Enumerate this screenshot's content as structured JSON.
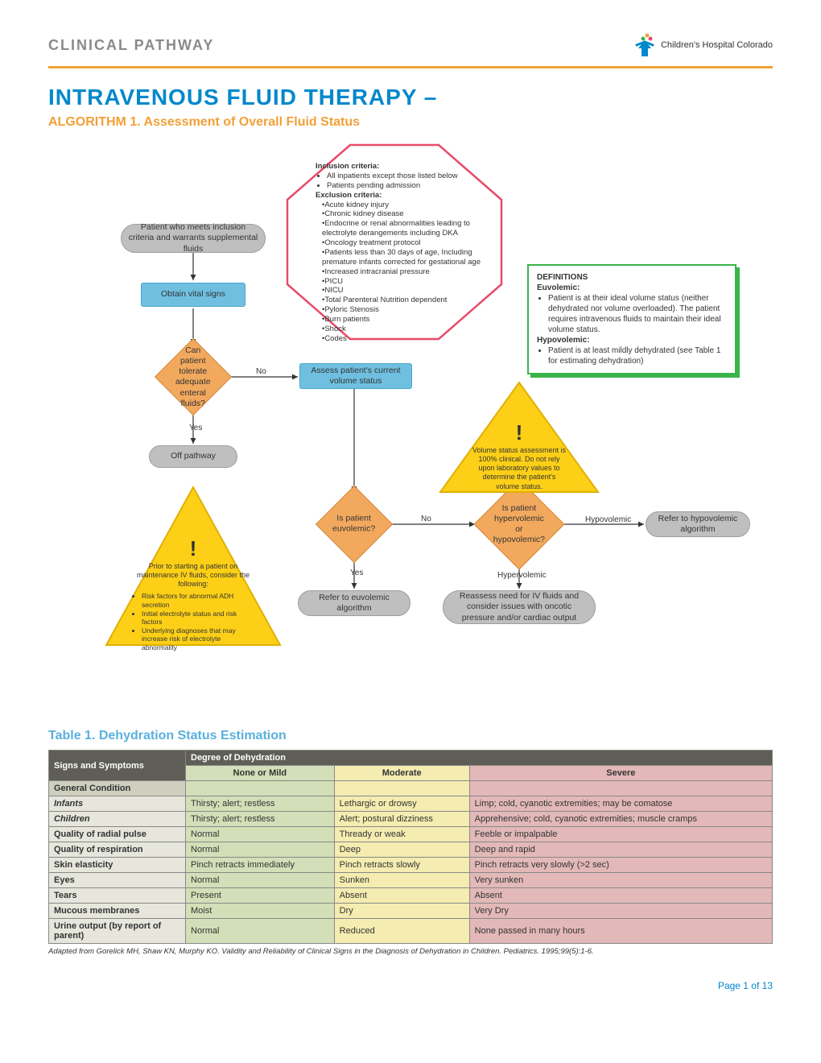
{
  "header": {
    "kicker": "CLINICAL PATHWAY",
    "logo_text": "Children's Hospital Colorado"
  },
  "title": "INTRAVENOUS FLUID THERAPY –",
  "subtitle": "ALGORITHM 1. Assessment of Overall Fluid Status",
  "colors": {
    "accent_blue": "#0088cc",
    "accent_orange": "#f2a037",
    "node_gray": "#bfbfbf",
    "node_blue": "#6fc0e0",
    "diamond_orange": "#f2a95e",
    "warn_yellow": "#fdd017",
    "warn_border": "#e0b000",
    "criteria_border": "#e94b6a",
    "defs_border": "#3bb44a",
    "table_header_dark": "#5e5e56",
    "mild_bg": "#d3dfb8",
    "mod_bg": "#f4ecb0",
    "sev_bg": "#e2b9b8",
    "rowhead_bg": "#cfcfbf",
    "rowlabel_bg": "#e6e6dc"
  },
  "nodes": {
    "n1": "Patient who meets inclusion criteria and warrants supplemental fluids",
    "n2": "Obtain vital signs",
    "n3": "Can patient tolerate adequate enteral fluids?",
    "n3_yes": "Yes",
    "n3_no": "No",
    "n4": "Off pathway",
    "n5": "Assess patient's current volume status",
    "n6": "Is patient euvolemic?",
    "n6_yes": "Yes",
    "n6_no": "No",
    "n7": "Refer to euvolemic algorithm",
    "n8": "Is patient hypervolemic or hypovolemic?",
    "n8_hyper": "Hypervolemic",
    "n8_hypo": "Hypovolemic",
    "n9": "Reassess need for IV fluids and consider issues with oncotic pressure and/or cardiac output",
    "n10": "Refer to hypovolemic algorithm"
  },
  "criteria": {
    "incl_title": "Inclusion criteria:",
    "incl": [
      "All inpatients except those listed below",
      "Patients pending admission"
    ],
    "excl_title": "Exclusion criteria:",
    "excl": [
      "Acute kidney injury",
      "Chronic kidney disease",
      "Endocrine or renal abnormalities leading to electrolyte derangements including DKA",
      "Oncology treatment protocol",
      "Patients less than 30 days of age, Including premature infants corrected for gestational age",
      "Increased intracranial pressure",
      "PICU",
      "NICU",
      "Total Parenteral Nutrition dependent",
      "Pyloric Stenosis",
      "Burn patients",
      "Shock",
      "Codes"
    ]
  },
  "definitions": {
    "title": "DEFINITIONS",
    "euv_title": "Euvolemic:",
    "euv_text": "Patient is at their ideal volume status (neither dehydrated nor volume overloaded). The patient requires intravenous fluids to maintain their ideal volume status.",
    "hypo_title": "Hypovolemic:",
    "hypo_text": "Patient is at least mildly dehydrated (see Table 1 for estimating dehydration)"
  },
  "warn_right": "Volume status assessment is 100% clinical. Do not rely upon laboratory values to determine the patient's volume status.",
  "warn_left_lead": "Prior to starting a patient on maintenance IV fluids, consider the following:",
  "warn_left_items": [
    "Risk factors for abnormal ADH secretion",
    "Initial electrolyte status and risk factors",
    "Underlying diagnoses that may increase risk of electrolyte abnormality"
  ],
  "table": {
    "title": "Table 1. Dehydration Status Estimation",
    "col1": "Signs and Symptoms",
    "spanhdr": "Degree of Dehydration",
    "degcols": [
      "None or Mild",
      "Moderate",
      "Severe"
    ],
    "rows": [
      {
        "type": "head",
        "label": "General Condition",
        "mild": "",
        "mod": "",
        "sev": ""
      },
      {
        "type": "sub",
        "label": "Infants",
        "mild": "Thirsty; alert; restless",
        "mod": "Lethargic or drowsy",
        "sev": "Limp; cold, cyanotic extremities; may be comatose"
      },
      {
        "type": "sub",
        "label": "Children",
        "mild": "Thirsty; alert; restless",
        "mod": "Alert; postural dizziness",
        "sev": "Apprehensive; cold, cyanotic extremities; muscle cramps"
      },
      {
        "type": "label",
        "label": "Quality of radial pulse",
        "mild": "Normal",
        "mod": "Thready or weak",
        "sev": "Feeble or impalpable"
      },
      {
        "type": "label",
        "label": "Quality of respiration",
        "mild": "Normal",
        "mod": "Deep",
        "sev": "Deep and rapid"
      },
      {
        "type": "label",
        "label": "Skin elasticity",
        "mild": "Pinch retracts immediately",
        "mod": "Pinch retracts slowly",
        "sev": "Pinch retracts very slowly (>2 sec)"
      },
      {
        "type": "label",
        "label": "Eyes",
        "mild": "Normal",
        "mod": "Sunken",
        "sev": "Very sunken"
      },
      {
        "type": "label",
        "label": "Tears",
        "mild": "Present",
        "mod": "Absent",
        "sev": "Absent"
      },
      {
        "type": "label",
        "label": "Mucous membranes",
        "mild": "Moist",
        "mod": "Dry",
        "sev": "Very Dry"
      },
      {
        "type": "label",
        "label": "Urine output (by report of parent)",
        "mild": "Normal",
        "mod": "Reduced",
        "sev": "None passed in many hours"
      }
    ],
    "citation": "Adapted from Gorelick MH, Shaw KN, Murphy KO. Validity and Reliability of Clinical Signs in the Diagnosis of Dehydration in Children. Pediatrics. 1995;99(5):1-6."
  },
  "page": "Page 1 of 13"
}
